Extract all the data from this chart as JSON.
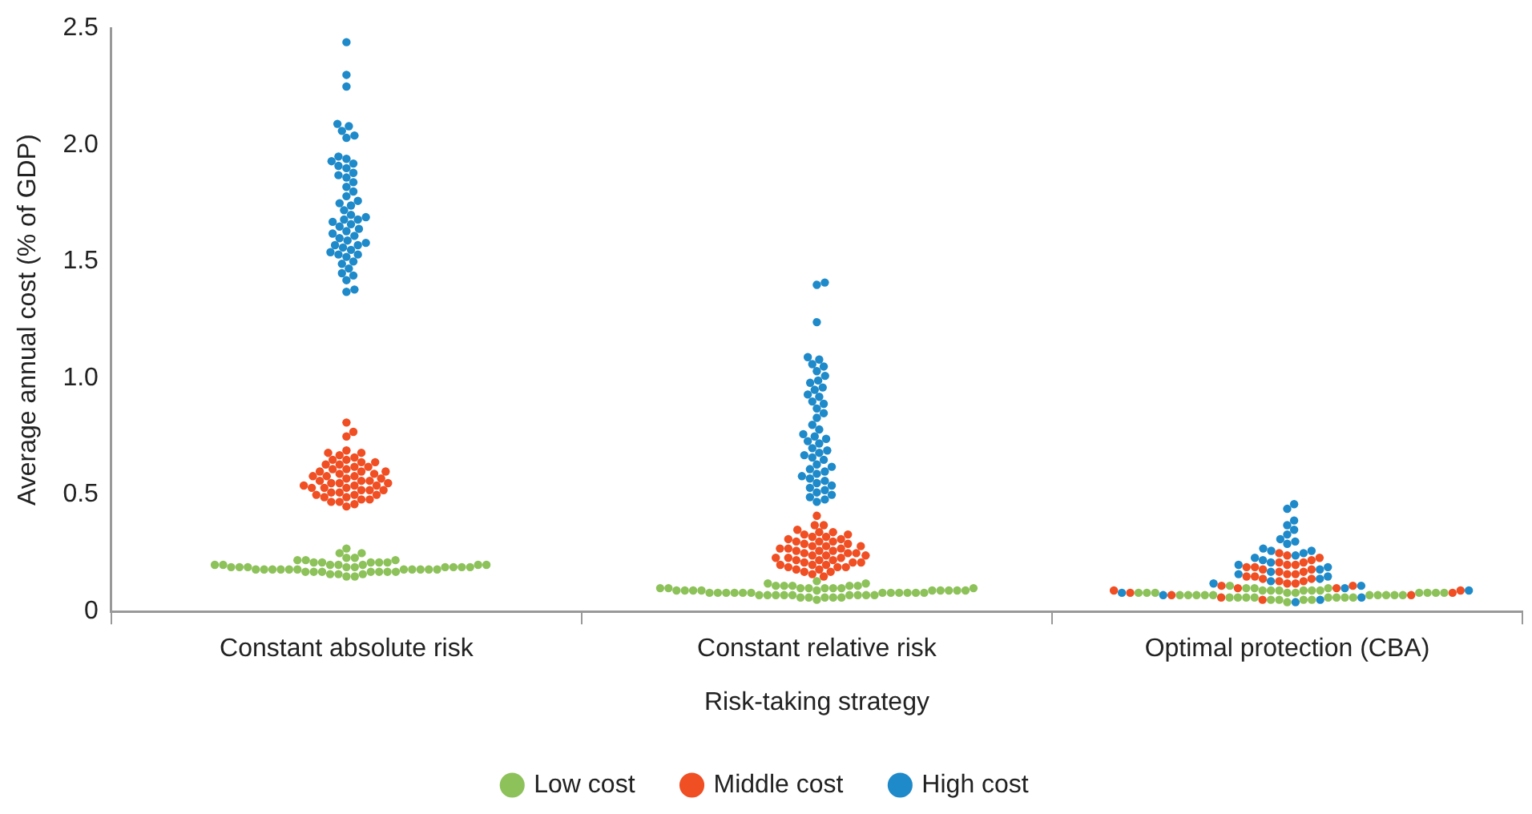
{
  "chart_data": {
    "type": "scatter",
    "xlabel": "Risk-taking strategy",
    "ylabel": "Average annual cost (% of GDP)",
    "categories": [
      "Constant absolute risk",
      "Constant relative risk",
      "Optimal protection (CBA)"
    ],
    "ylim": [
      0,
      2.5
    ],
    "yticks": [
      0,
      0.5,
      {
        "value": 1,
        "label": "1.0"
      },
      1.5,
      {
        "value": 2,
        "label": "2.0"
      },
      2.5
    ],
    "grid": false,
    "legend": "bottom",
    "marker": "circle",
    "series": [
      {
        "name": "Low cost",
        "color": "#8dc25a",
        "x": [
          "Constant absolute risk",
          "Constant absolute risk",
          "Constant absolute risk",
          "Constant absolute risk",
          "Constant absolute risk",
          "Constant absolute risk",
          "Constant absolute risk",
          "Constant absolute risk",
          "Constant absolute risk",
          "Constant absolute risk",
          "Constant absolute risk",
          "Constant absolute risk",
          "Constant absolute risk",
          "Constant absolute risk",
          "Constant absolute risk",
          "Constant absolute risk",
          "Constant absolute risk",
          "Constant absolute risk",
          "Constant absolute risk",
          "Constant absolute risk",
          "Constant absolute risk",
          "Constant absolute risk",
          "Constant absolute risk",
          "Constant absolute risk",
          "Constant absolute risk",
          "Constant absolute risk",
          "Constant absolute risk",
          "Constant absolute risk",
          "Constant absolute risk",
          "Constant absolute risk",
          "Constant absolute risk",
          "Constant absolute risk",
          "Constant absolute risk",
          "Constant absolute risk",
          "Constant absolute risk",
          "Constant absolute risk",
          "Constant absolute risk",
          "Constant absolute risk",
          "Constant absolute risk",
          "Constant absolute risk",
          "Constant absolute risk",
          "Constant absolute risk",
          "Constant absolute risk",
          "Constant absolute risk",
          "Constant absolute risk",
          "Constant absolute risk",
          "Constant absolute risk",
          "Constant absolute risk",
          "Constant absolute risk",
          "Constant absolute risk",
          "Constant absolute risk",
          "Constant absolute risk",
          "Constant relative risk",
          "Constant relative risk",
          "Constant relative risk",
          "Constant relative risk",
          "Constant relative risk",
          "Constant relative risk",
          "Constant relative risk",
          "Constant relative risk",
          "Constant relative risk",
          "Constant relative risk",
          "Constant relative risk",
          "Constant relative risk",
          "Constant relative risk",
          "Constant relative risk",
          "Constant relative risk",
          "Constant relative risk",
          "Constant relative risk",
          "Constant relative risk",
          "Constant relative risk",
          "Constant relative risk",
          "Constant relative risk",
          "Constant relative risk",
          "Constant relative risk",
          "Constant relative risk",
          "Constant relative risk",
          "Constant relative risk",
          "Constant relative risk",
          "Constant relative risk",
          "Constant relative risk",
          "Constant relative risk",
          "Constant relative risk",
          "Constant relative risk",
          "Constant relative risk",
          "Constant relative risk",
          "Constant relative risk",
          "Constant relative risk",
          "Constant relative risk",
          "Constant relative risk",
          "Constant relative risk",
          "Constant relative risk",
          "Constant relative risk",
          "Constant relative risk",
          "Constant relative risk",
          "Constant relative risk",
          "Constant relative risk",
          "Constant relative risk",
          "Constant relative risk",
          "Constant relative risk",
          "Constant relative risk",
          "Constant relative risk",
          "Constant relative risk",
          "Constant relative risk",
          "Constant relative risk",
          "Optimal protection (CBA)",
          "Optimal protection (CBA)",
          "Optimal protection (CBA)",
          "Optimal protection (CBA)",
          "Optimal protection (CBA)",
          "Optimal protection (CBA)",
          "Optimal protection (CBA)",
          "Optimal protection (CBA)",
          "Optimal protection (CBA)",
          "Optimal protection (CBA)",
          "Optimal protection (CBA)",
          "Optimal protection (CBA)",
          "Optimal protection (CBA)",
          "Optimal protection (CBA)",
          "Optimal protection (CBA)",
          "Optimal protection (CBA)",
          "Optimal protection (CBA)",
          "Optimal protection (CBA)",
          "Optimal protection (CBA)",
          "Optimal protection (CBA)",
          "Optimal protection (CBA)",
          "Optimal protection (CBA)",
          "Optimal protection (CBA)",
          "Optimal protection (CBA)",
          "Optimal protection (CBA)",
          "Optimal protection (CBA)",
          "Optimal protection (CBA)",
          "Optimal protection (CBA)",
          "Optimal protection (CBA)",
          "Optimal protection (CBA)",
          "Optimal protection (CBA)",
          "Optimal protection (CBA)",
          "Optimal protection (CBA)",
          "Optimal protection (CBA)",
          "Optimal protection (CBA)",
          "Optimal protection (CBA)",
          "Optimal protection (CBA)",
          "Optimal protection (CBA)",
          "Optimal protection (CBA)",
          "Optimal protection (CBA)",
          "Optimal protection (CBA)",
          "Optimal protection (CBA)"
        ],
        "values": [
          0.27,
          0.25,
          0.25,
          0.23,
          0.23,
          0.22,
          0.22,
          0.22,
          0.21,
          0.21,
          0.21,
          0.21,
          0.21,
          0.2,
          0.2,
          0.2,
          0.2,
          0.2,
          0.2,
          0.2,
          0.19,
          0.19,
          0.19,
          0.19,
          0.19,
          0.19,
          0.19,
          0.19,
          0.19,
          0.18,
          0.18,
          0.18,
          0.18,
          0.18,
          0.18,
          0.18,
          0.18,
          0.18,
          0.18,
          0.18,
          0.17,
          0.17,
          0.17,
          0.17,
          0.17,
          0.17,
          0.17,
          0.16,
          0.16,
          0.16,
          0.15,
          0.15,
          0.13,
          0.12,
          0.12,
          0.11,
          0.11,
          0.11,
          0.11,
          0.11,
          0.1,
          0.1,
          0.1,
          0.1,
          0.1,
          0.1,
          0.1,
          0.1,
          0.09,
          0.09,
          0.09,
          0.09,
          0.09,
          0.09,
          0.09,
          0.09,
          0.09,
          0.09,
          0.08,
          0.08,
          0.08,
          0.08,
          0.08,
          0.08,
          0.08,
          0.08,
          0.08,
          0.08,
          0.08,
          0.08,
          0.07,
          0.07,
          0.07,
          0.07,
          0.07,
          0.07,
          0.07,
          0.07,
          0.07,
          0.06,
          0.06,
          0.06,
          0.06,
          0.06,
          0.05,
          0.11,
          0.1,
          0.1,
          0.1,
          0.09,
          0.09,
          0.09,
          0.09,
          0.09,
          0.09,
          0.08,
          0.08,
          0.08,
          0.08,
          0.08,
          0.08,
          0.08,
          0.08,
          0.08,
          0.07,
          0.07,
          0.07,
          0.07,
          0.07,
          0.07,
          0.07,
          0.07,
          0.07,
          0.07,
          0.06,
          0.06,
          0.06,
          0.06,
          0.06,
          0.06,
          0.06,
          0.06,
          0.05,
          0.05,
          0.05,
          0.05,
          0.04
        ]
      },
      {
        "name": "Middle cost",
        "color": "#f04e23",
        "x": [
          "Constant absolute risk",
          "Constant absolute risk",
          "Constant absolute risk",
          "Constant absolute risk",
          "Constant absolute risk",
          "Constant absolute risk",
          "Constant absolute risk",
          "Constant absolute risk",
          "Constant absolute risk",
          "Constant absolute risk",
          "Constant absolute risk",
          "Constant absolute risk",
          "Constant absolute risk",
          "Constant absolute risk",
          "Constant absolute risk",
          "Constant absolute risk",
          "Constant absolute risk",
          "Constant absolute risk",
          "Constant absolute risk",
          "Constant absolute risk",
          "Constant absolute risk",
          "Constant absolute risk",
          "Constant absolute risk",
          "Constant absolute risk",
          "Constant absolute risk",
          "Constant absolute risk",
          "Constant absolute risk",
          "Constant absolute risk",
          "Constant absolute risk",
          "Constant absolute risk",
          "Constant absolute risk",
          "Constant absolute risk",
          "Constant absolute risk",
          "Constant absolute risk",
          "Constant absolute risk",
          "Constant absolute risk",
          "Constant absolute risk",
          "Constant absolute risk",
          "Constant absolute risk",
          "Constant absolute risk",
          "Constant absolute risk",
          "Constant absolute risk",
          "Constant absolute risk",
          "Constant absolute risk",
          "Constant absolute risk",
          "Constant absolute risk",
          "Constant absolute risk",
          "Constant absolute risk",
          "Constant absolute risk",
          "Constant absolute risk",
          "Constant absolute risk",
          "Constant absolute risk",
          "Constant absolute risk",
          "Constant absolute risk",
          "Constant absolute risk",
          "Constant absolute risk",
          "Constant relative risk",
          "Constant relative risk",
          "Constant relative risk",
          "Constant relative risk",
          "Constant relative risk",
          "Constant relative risk",
          "Constant relative risk",
          "Constant relative risk",
          "Constant relative risk",
          "Constant relative risk",
          "Constant relative risk",
          "Constant relative risk",
          "Constant relative risk",
          "Constant relative risk",
          "Constant relative risk",
          "Constant relative risk",
          "Constant relative risk",
          "Constant relative risk",
          "Constant relative risk",
          "Constant relative risk",
          "Constant relative risk",
          "Constant relative risk",
          "Constant relative risk",
          "Constant relative risk",
          "Constant relative risk",
          "Constant relative risk",
          "Constant relative risk",
          "Constant relative risk",
          "Constant relative risk",
          "Constant relative risk",
          "Constant relative risk",
          "Constant relative risk",
          "Constant relative risk",
          "Constant relative risk",
          "Constant relative risk",
          "Constant relative risk",
          "Constant relative risk",
          "Constant relative risk",
          "Constant relative risk",
          "Constant relative risk",
          "Constant relative risk",
          "Constant relative risk",
          "Constant relative risk",
          "Constant relative risk",
          "Constant relative risk",
          "Constant relative risk",
          "Constant relative risk",
          "Constant relative risk",
          "Constant relative risk",
          "Constant relative risk",
          "Constant relative risk",
          "Constant relative risk",
          "Constant relative risk",
          "Optimal protection (CBA)",
          "Optimal protection (CBA)",
          "Optimal protection (CBA)",
          "Optimal protection (CBA)",
          "Optimal protection (CBA)",
          "Optimal protection (CBA)",
          "Optimal protection (CBA)",
          "Optimal protection (CBA)",
          "Optimal protection (CBA)",
          "Optimal protection (CBA)",
          "Optimal protection (CBA)",
          "Optimal protection (CBA)",
          "Optimal protection (CBA)",
          "Optimal protection (CBA)",
          "Optimal protection (CBA)",
          "Optimal protection (CBA)",
          "Optimal protection (CBA)",
          "Optimal protection (CBA)",
          "Optimal protection (CBA)",
          "Optimal protection (CBA)",
          "Optimal protection (CBA)",
          "Optimal protection (CBA)",
          "Optimal protection (CBA)",
          "Optimal protection (CBA)",
          "Optimal protection (CBA)",
          "Optimal protection (CBA)",
          "Optimal protection (CBA)",
          "Optimal protection (CBA)",
          "Optimal protection (CBA)",
          "Optimal protection (CBA)",
          "Optimal protection (CBA)",
          "Optimal protection (CBA)",
          "Optimal protection (CBA)",
          "Optimal protection (CBA)",
          "Optimal protection (CBA)",
          "Optimal protection (CBA)"
        ],
        "values": [
          0.81,
          0.77,
          0.75,
          0.69,
          0.68,
          0.68,
          0.67,
          0.66,
          0.65,
          0.65,
          0.64,
          0.64,
          0.63,
          0.63,
          0.62,
          0.62,
          0.61,
          0.61,
          0.6,
          0.6,
          0.6,
          0.59,
          0.59,
          0.58,
          0.58,
          0.58,
          0.57,
          0.57,
          0.56,
          0.56,
          0.56,
          0.55,
          0.55,
          0.55,
          0.54,
          0.54,
          0.54,
          0.53,
          0.53,
          0.53,
          0.52,
          0.52,
          0.52,
          0.51,
          0.51,
          0.5,
          0.5,
          0.5,
          0.49,
          0.49,
          0.48,
          0.48,
          0.47,
          0.47,
          0.46,
          0.45,
          0.41,
          0.37,
          0.37,
          0.35,
          0.34,
          0.34,
          0.33,
          0.33,
          0.32,
          0.32,
          0.31,
          0.31,
          0.3,
          0.3,
          0.3,
          0.29,
          0.29,
          0.28,
          0.28,
          0.28,
          0.27,
          0.27,
          0.27,
          0.26,
          0.26,
          0.26,
          0.25,
          0.25,
          0.25,
          0.24,
          0.24,
          0.24,
          0.23,
          0.23,
          0.23,
          0.22,
          0.22,
          0.22,
          0.21,
          0.21,
          0.21,
          0.2,
          0.2,
          0.2,
          0.19,
          0.19,
          0.19,
          0.18,
          0.18,
          0.17,
          0.17,
          0.16,
          0.15,
          0.25,
          0.24,
          0.23,
          0.22,
          0.21,
          0.21,
          0.2,
          0.2,
          0.19,
          0.19,
          0.18,
          0.18,
          0.17,
          0.17,
          0.16,
          0.16,
          0.15,
          0.15,
          0.14,
          0.14,
          0.13,
          0.13,
          0.12,
          0.12,
          0.11,
          0.11,
          0.1,
          0.1,
          0.09,
          0.09,
          0.08,
          0.08,
          0.07,
          0.07,
          0.06,
          0.05
        ]
      },
      {
        "name": "High cost",
        "color": "#1f8ac9",
        "x": [
          "Constant absolute risk",
          "Constant absolute risk",
          "Constant absolute risk",
          "Constant absolute risk",
          "Constant absolute risk",
          "Constant absolute risk",
          "Constant absolute risk",
          "Constant absolute risk",
          "Constant absolute risk",
          "Constant absolute risk",
          "Constant absolute risk",
          "Constant absolute risk",
          "Constant absolute risk",
          "Constant absolute risk",
          "Constant absolute risk",
          "Constant absolute risk",
          "Constant absolute risk",
          "Constant absolute risk",
          "Constant absolute risk",
          "Constant absolute risk",
          "Constant absolute risk",
          "Constant absolute risk",
          "Constant absolute risk",
          "Constant absolute risk",
          "Constant absolute risk",
          "Constant absolute risk",
          "Constant absolute risk",
          "Constant absolute risk",
          "Constant absolute risk",
          "Constant absolute risk",
          "Constant absolute risk",
          "Constant absolute risk",
          "Constant absolute risk",
          "Constant absolute risk",
          "Constant absolute risk",
          "Constant absolute risk",
          "Constant absolute risk",
          "Constant absolute risk",
          "Constant absolute risk",
          "Constant absolute risk",
          "Constant absolute risk",
          "Constant absolute risk",
          "Constant absolute risk",
          "Constant absolute risk",
          "Constant absolute risk",
          "Constant absolute risk",
          "Constant absolute risk",
          "Constant absolute risk",
          "Constant absolute risk",
          "Constant absolute risk",
          "Constant absolute risk",
          "Constant absolute risk",
          "Constant absolute risk",
          "Constant absolute risk",
          "Constant absolute risk",
          "Constant relative risk",
          "Constant relative risk",
          "Constant relative risk",
          "Constant relative risk",
          "Constant relative risk",
          "Constant relative risk",
          "Constant relative risk",
          "Constant relative risk",
          "Constant relative risk",
          "Constant relative risk",
          "Constant relative risk",
          "Constant relative risk",
          "Constant relative risk",
          "Constant relative risk",
          "Constant relative risk",
          "Constant relative risk",
          "Constant relative risk",
          "Constant relative risk",
          "Constant relative risk",
          "Constant relative risk",
          "Constant relative risk",
          "Constant relative risk",
          "Constant relative risk",
          "Constant relative risk",
          "Constant relative risk",
          "Constant relative risk",
          "Constant relative risk",
          "Constant relative risk",
          "Constant relative risk",
          "Constant relative risk",
          "Constant relative risk",
          "Constant relative risk",
          "Constant relative risk",
          "Constant relative risk",
          "Constant relative risk",
          "Constant relative risk",
          "Constant relative risk",
          "Constant relative risk",
          "Constant relative risk",
          "Constant relative risk",
          "Constant relative risk",
          "Constant relative risk",
          "Constant relative risk",
          "Constant relative risk",
          "Constant relative risk",
          "Constant relative risk",
          "Constant relative risk",
          "Constant relative risk",
          "Constant relative risk",
          "Constant relative risk",
          "Optimal protection (CBA)",
          "Optimal protection (CBA)",
          "Optimal protection (CBA)",
          "Optimal protection (CBA)",
          "Optimal protection (CBA)",
          "Optimal protection (CBA)",
          "Optimal protection (CBA)",
          "Optimal protection (CBA)",
          "Optimal protection (CBA)",
          "Optimal protection (CBA)",
          "Optimal protection (CBA)",
          "Optimal protection (CBA)",
          "Optimal protection (CBA)",
          "Optimal protection (CBA)",
          "Optimal protection (CBA)",
          "Optimal protection (CBA)",
          "Optimal protection (CBA)",
          "Optimal protection (CBA)",
          "Optimal protection (CBA)",
          "Optimal protection (CBA)",
          "Optimal protection (CBA)",
          "Optimal protection (CBA)",
          "Optimal protection (CBA)",
          "Optimal protection (CBA)",
          "Optimal protection (CBA)",
          "Optimal protection (CBA)",
          "Optimal protection (CBA)",
          "Optimal protection (CBA)",
          "Optimal protection (CBA)",
          "Optimal protection (CBA)",
          "Optimal protection (CBA)",
          "Optimal protection (CBA)",
          "Optimal protection (CBA)",
          "Optimal protection (CBA)"
        ],
        "values": [
          2.44,
          2.3,
          2.25,
          2.09,
          2.08,
          2.06,
          2.04,
          2.03,
          1.95,
          1.94,
          1.93,
          1.92,
          1.91,
          1.9,
          1.88,
          1.87,
          1.86,
          1.84,
          1.82,
          1.8,
          1.78,
          1.76,
          1.75,
          1.74,
          1.72,
          1.7,
          1.69,
          1.68,
          1.68,
          1.67,
          1.66,
          1.65,
          1.64,
          1.63,
          1.62,
          1.61,
          1.6,
          1.59,
          1.58,
          1.57,
          1.57,
          1.56,
          1.55,
          1.54,
          1.53,
          1.53,
          1.52,
          1.5,
          1.49,
          1.47,
          1.45,
          1.44,
          1.42,
          1.38,
          1.37,
          1.41,
          1.4,
          1.24,
          1.09,
          1.08,
          1.06,
          1.05,
          1.03,
          1.01,
          0.99,
          0.98,
          0.96,
          0.95,
          0.93,
          0.92,
          0.9,
          0.89,
          0.87,
          0.85,
          0.83,
          0.8,
          0.78,
          0.76,
          0.75,
          0.74,
          0.73,
          0.72,
          0.7,
          0.69,
          0.68,
          0.67,
          0.66,
          0.65,
          0.63,
          0.62,
          0.61,
          0.6,
          0.59,
          0.58,
          0.57,
          0.56,
          0.55,
          0.54,
          0.53,
          0.52,
          0.51,
          0.5,
          0.49,
          0.48,
          0.47,
          0.46,
          0.44,
          0.39,
          0.37,
          0.35,
          0.33,
          0.31,
          0.3,
          0.29,
          0.27,
          0.26,
          0.26,
          0.25,
          0.24,
          0.23,
          0.22,
          0.21,
          0.2,
          0.19,
          0.18,
          0.17,
          0.16,
          0.15,
          0.14,
          0.13,
          0.12,
          0.11,
          0.1,
          0.09,
          0.08,
          0.07,
          0.06,
          0.05,
          0.04
        ]
      }
    ]
  }
}
